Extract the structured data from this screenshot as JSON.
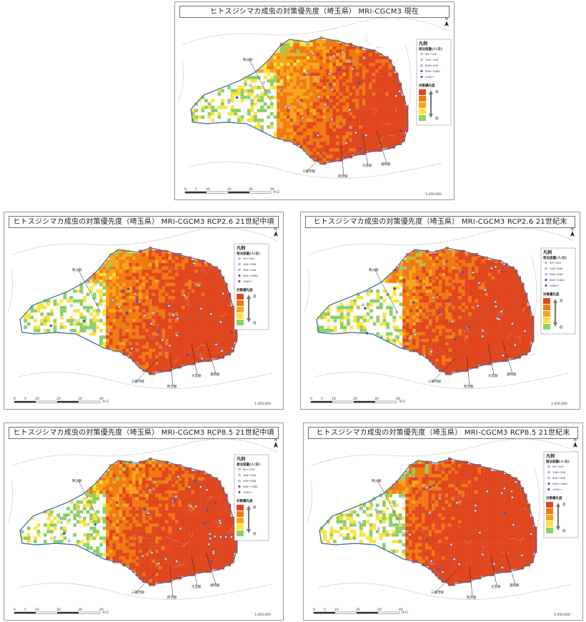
{
  "panels": [
    {
      "title": "ヒトスジシマカ成虫の対策優先度（埼玉県） MRI-CGCM3 現在",
      "scenario": "current"
    },
    {
      "title": "ヒトスジシマカ成虫の対策優先度（埼玉県） MRI-CGCM3 RCP2.6 21世紀中頃",
      "scenario": "rcp26_mid"
    },
    {
      "title": "ヒトスジシマカ成虫の対策優先度（埼玉県） MRI-CGCM3 RCP2.6 21世紀末",
      "scenario": "rcp26_end"
    },
    {
      "title": "ヒトスジシマカ成虫の対策優先度（埼玉県） MRI-CGCM3 RCP8.5 21世紀中頃",
      "scenario": "rcp85_mid"
    },
    {
      "title": "ヒトスジシマカ成虫の対策優先度（埼玉県） MRI-CGCM3 RCP8.5 21世紀末",
      "scenario": "rcp85_end"
    }
  ],
  "legend": {
    "title": "凡例",
    "station_header": "宿泊容量(人/日)",
    "station_classes": [
      "50～100",
      "100～300",
      "300～500",
      "500～1000",
      "1000～"
    ],
    "priority_header": "対策優先度",
    "priority_high": "高",
    "priority_low": "低",
    "priority_colors": [
      "#e0471f",
      "#f07a12",
      "#f9a51a",
      "#fde33b",
      "#8fd068"
    ]
  },
  "stations": [
    "秩父駅",
    "三郷市駅",
    "所沢駅",
    "大宮駅",
    "浦和駅"
  ],
  "scale": {
    "ticks": [
      "0",
      "5",
      "10",
      "20",
      "30",
      "40"
    ],
    "unit": "キロ",
    "ratio": "1:450,000"
  },
  "north_label": "N"
}
